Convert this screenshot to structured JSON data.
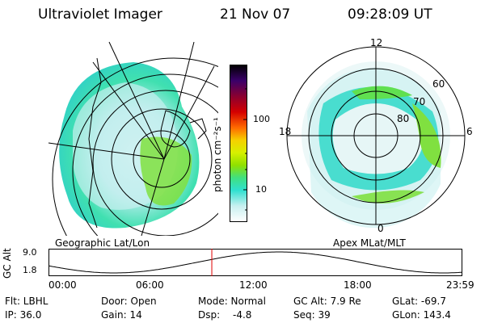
{
  "header": {
    "instrument": "Ultraviolet Imager",
    "date": "21 Nov 07",
    "time": "09:28:09 UT"
  },
  "colorbar": {
    "unit_label": "photon cm⁻²s⁻¹",
    "tick_100": "100",
    "tick_10": "10",
    "colors": [
      "#000000",
      "#3a006a",
      "#8a0030",
      "#d40000",
      "#ff6a00",
      "#f6d000",
      "#d6f000",
      "#90e000",
      "#40e080",
      "#30e0d0",
      "#80e8e8",
      "#c8f0f0",
      "#ffffff"
    ]
  },
  "geo_panel": {
    "caption": "Geographic Lat/Lon"
  },
  "polar_panel": {
    "caption": "Apex MLat/MLT",
    "mlt_12": "12",
    "mlt_18": "18",
    "mlt_6": "6",
    "mlt_0": "0",
    "lat_60": "60",
    "lat_70": "70",
    "lat_80": "80"
  },
  "altitude_plot": {
    "ylabel": "GC Alt",
    "ytick_top": "9.0",
    "ytick_bottom": "1.8",
    "xticks": [
      "00:00",
      "06:00",
      "12:00",
      "18:00",
      "23:59"
    ],
    "current_time_marker_hours": 9.47,
    "marker_color": "#e00000"
  },
  "info_row1": {
    "filter": "Flt: LBHL",
    "door": "Door: Open",
    "mode": "Mode: Normal",
    "gc_alt": "GC Alt: 7.9 Re",
    "glat": "GLat: -69.7"
  },
  "info_row2": {
    "ip": "IP: 36.0",
    "gain": "Gain: 14",
    "dsp_label": "Dsp:",
    "dsp_value": "-4.8",
    "seq": "Seq: 39",
    "glon": "GLon: 143.4"
  }
}
